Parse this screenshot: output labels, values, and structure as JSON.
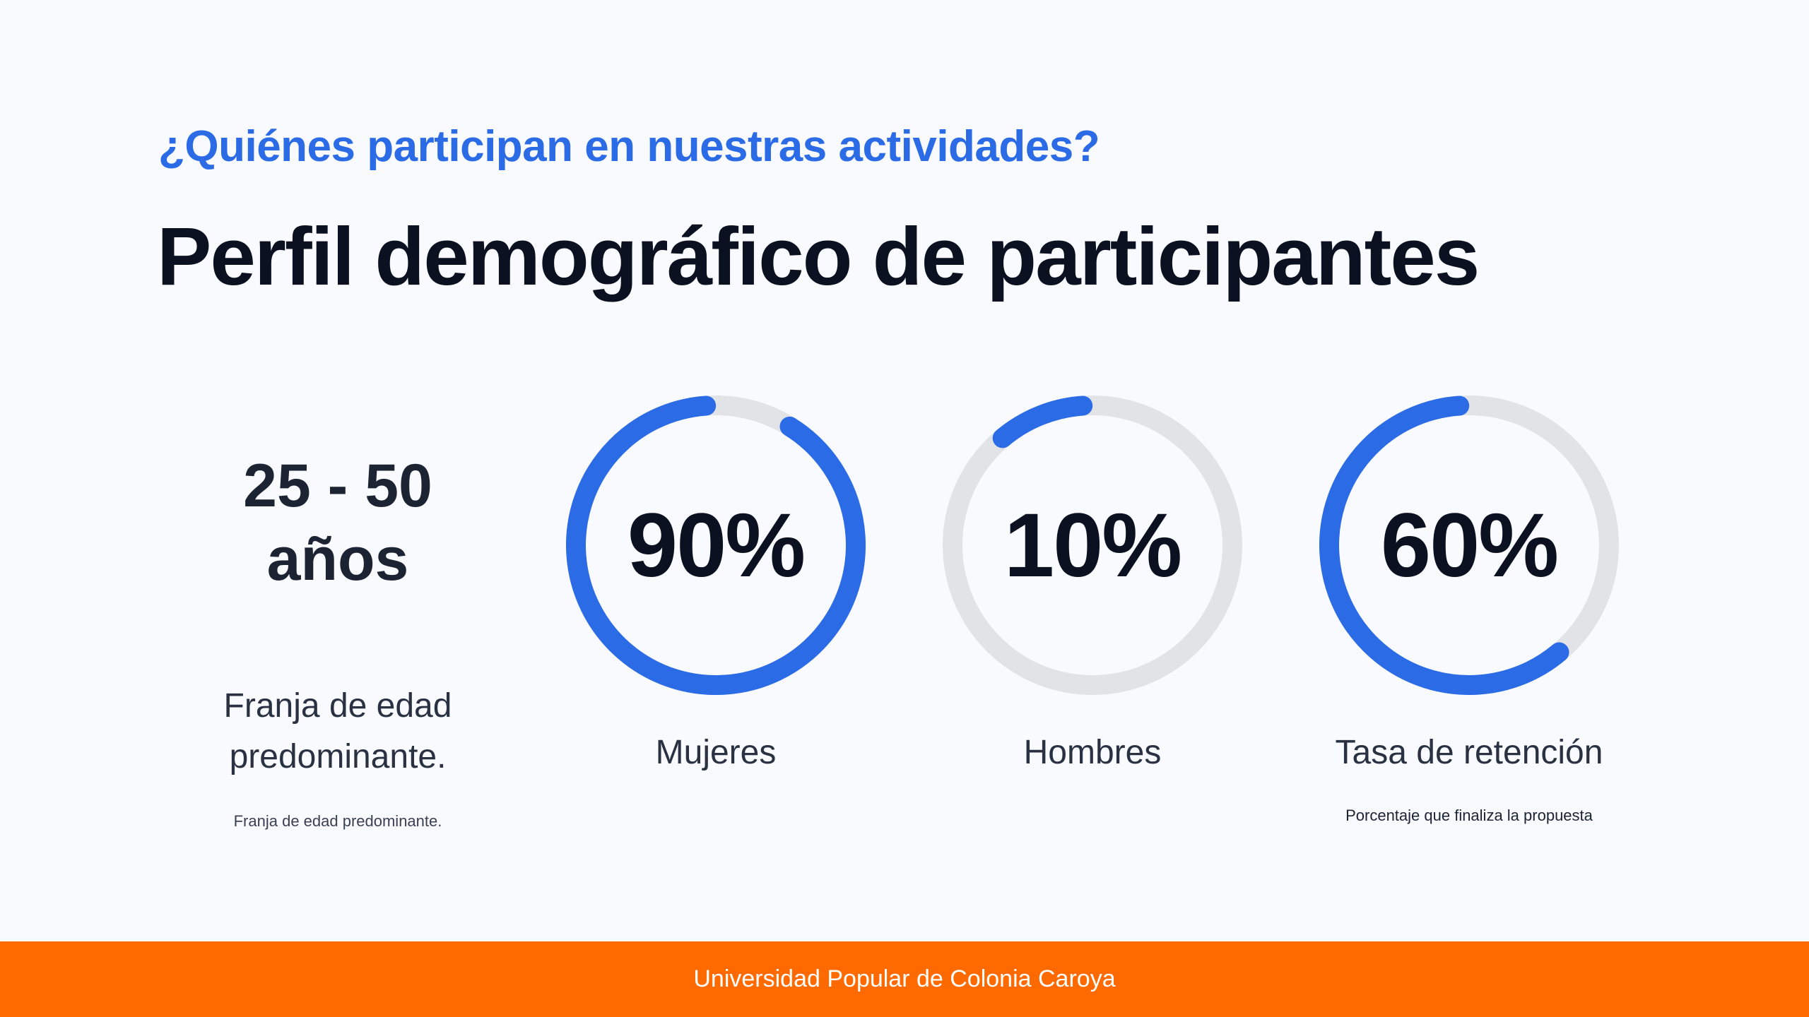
{
  "header": {
    "eyebrow": "¿Quiénes participan en nuestras actividades?",
    "title": "Perfil demográfico de participantes"
  },
  "age": {
    "value_line1": "25 - 50",
    "value_line2": "años",
    "caption_line1": "Franja de edad",
    "caption_line2": "predominante.",
    "note": "Franja de edad predominante."
  },
  "stats": [
    {
      "value": "90%",
      "percent": 90,
      "label": "Mujeres",
      "note": ""
    },
    {
      "value": "10%",
      "percent": 10,
      "label": "Hombres",
      "note": ""
    },
    {
      "value": "60%",
      "percent": 60,
      "label": "Tasa de retención",
      "note": "Porcentaje que finaliza la propuesta"
    }
  ],
  "footer": {
    "text": "Universidad Popular de Colonia Caroya"
  },
  "colors": {
    "accent": "#2b6be6",
    "track": "#e2e3e7",
    "footer": "#ff6a00"
  }
}
